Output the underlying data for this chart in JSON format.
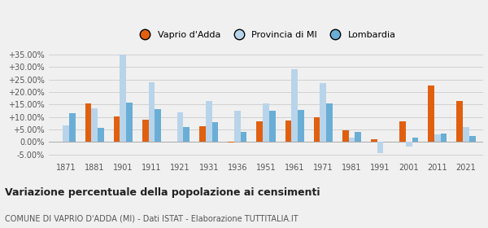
{
  "years": [
    1871,
    1881,
    1901,
    1911,
    1921,
    1931,
    1936,
    1951,
    1961,
    1971,
    1981,
    1991,
    2001,
    2011,
    2021
  ],
  "vaprio": [
    0.0,
    15.3,
    10.2,
    9.0,
    0.0,
    6.3,
    -0.2,
    8.3,
    8.5,
    9.8,
    4.8,
    1.0,
    8.2,
    22.5,
    16.3
  ],
  "provincia": [
    6.5,
    13.5,
    35.0,
    24.0,
    12.0,
    16.3,
    12.5,
    15.5,
    29.0,
    23.7,
    1.8,
    -4.5,
    -1.8,
    3.2,
    6.0
  ],
  "lombardia": [
    11.5,
    5.7,
    15.7,
    13.2,
    6.0,
    8.0,
    4.2,
    12.5,
    12.8,
    15.3,
    4.0,
    0.0,
    1.8,
    3.5,
    2.5
  ],
  "color_vaprio": "#e06010",
  "color_provincia": "#b8d4ea",
  "color_lombardia": "#6aaed6",
  "ylim": [
    -7.0,
    38.5
  ],
  "yticks": [
    -5.0,
    0.0,
    5.0,
    10.0,
    15.0,
    20.0,
    25.0,
    30.0,
    35.0
  ],
  "title": "Variazione percentuale della popolazione ai censimenti",
  "subtitle": "COMUNE DI VAPRIO D'ADDA (MI) - Dati ISTAT - Elaborazione TUTTITALIA.IT",
  "legend_labels": [
    "Vaprio d'Adda",
    "Provincia di MI",
    "Lombardia"
  ],
  "bar_width": 0.22,
  "bg_color": "#f0f0f0"
}
